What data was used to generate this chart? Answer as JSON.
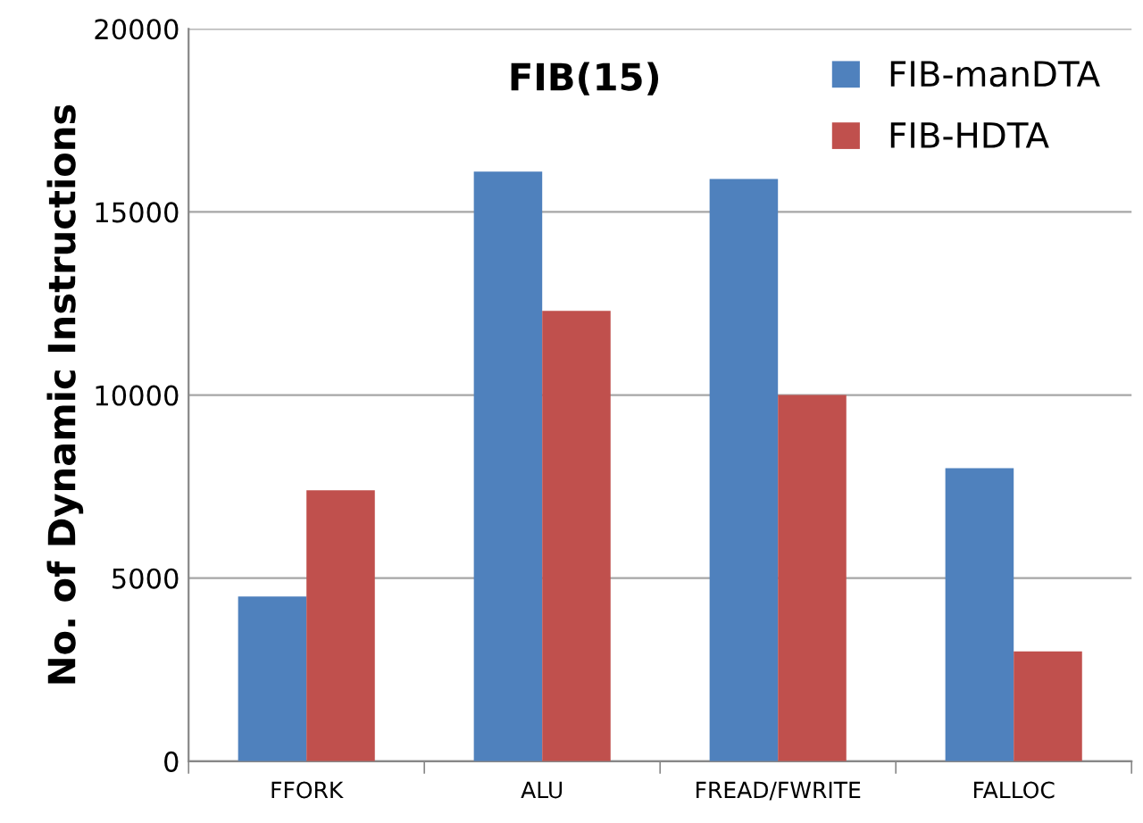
{
  "chart_data": {
    "type": "bar",
    "title": "FIB(15)",
    "ylabel": "No. of Dynamic Instructions",
    "categories": [
      "FFORK",
      "ALU",
      "FREAD/FWRITE",
      "FALLOC"
    ],
    "series": [
      {
        "name": "FIB-manDTA",
        "color": "#4f81bd",
        "values": [
          4500,
          16100,
          15900,
          8000
        ]
      },
      {
        "name": "FIB-HDTA",
        "color": "#c0504d",
        "values": [
          7400,
          12300,
          10000,
          3000
        ]
      }
    ],
    "ylim": [
      0,
      20000
    ],
    "yticks": [
      0,
      5000,
      10000,
      15000,
      20000
    ],
    "grid": "y",
    "legend": "top right"
  }
}
